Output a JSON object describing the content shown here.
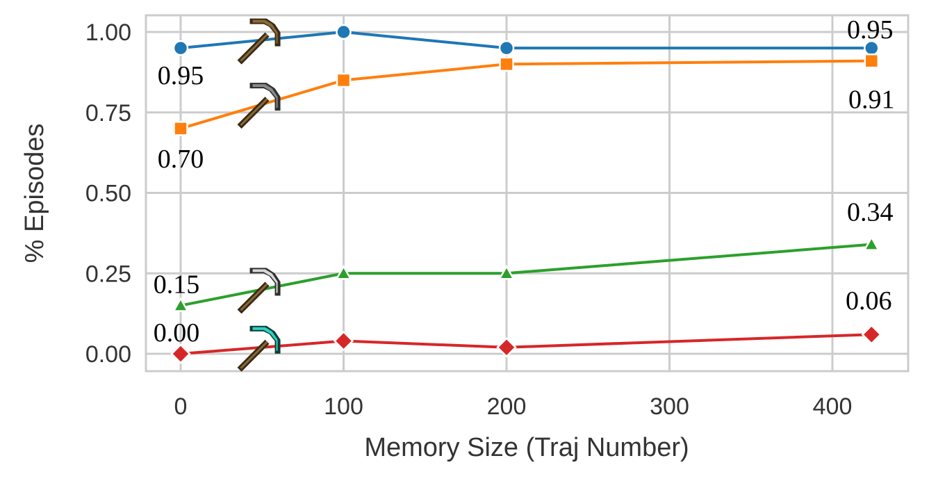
{
  "chart_data": {
    "type": "line",
    "title": "",
    "xlabel": "Memory Size (Traj Number)",
    "ylabel": "% Episodes",
    "xlim": [
      -20,
      445
    ],
    "ylim": [
      -0.05,
      1.05
    ],
    "xticks": [
      0,
      100,
      200,
      300,
      400
    ],
    "xtick_labels": [
      "0",
      "100",
      "200",
      "300",
      "400"
    ],
    "yticks": [
      0,
      0.25,
      0.5,
      0.75,
      1.0
    ],
    "ytick_labels": [
      "0.00",
      "0.25",
      "0.50",
      "0.75",
      "1.00"
    ],
    "grid": true,
    "legend": false,
    "series": [
      {
        "key": "wooden-pickaxe",
        "icon": "wooden-pickaxe-icon",
        "color": "#1f77b4",
        "marker": "circle",
        "x": [
          0,
          100,
          200,
          424
        ],
        "y": [
          0.95,
          1.0,
          0.95,
          0.95
        ]
      },
      {
        "key": "stone-pickaxe",
        "icon": "stone-pickaxe-icon",
        "color": "#ff7f0e",
        "marker": "square",
        "x": [
          0,
          100,
          200,
          424
        ],
        "y": [
          0.7,
          0.85,
          0.9,
          0.91
        ]
      },
      {
        "key": "iron-pickaxe",
        "icon": "iron-pickaxe-icon",
        "color": "#2ca02c",
        "marker": "triangle",
        "x": [
          0,
          100,
          200,
          424
        ],
        "y": [
          0.15,
          0.25,
          0.25,
          0.34
        ]
      },
      {
        "key": "diamond-pickaxe",
        "icon": "diamond-pickaxe-icon",
        "color": "#d62728",
        "marker": "diamond",
        "x": [
          0,
          100,
          200,
          424
        ],
        "y": [
          0.0,
          0.04,
          0.02,
          0.06
        ]
      }
    ],
    "annotations": [
      {
        "text": "0.95",
        "series": "wooden-pickaxe",
        "point": "first"
      },
      {
        "text": "0.95",
        "series": "wooden-pickaxe",
        "point": "last"
      },
      {
        "text": "0.70",
        "series": "stone-pickaxe",
        "point": "first"
      },
      {
        "text": "0.91",
        "series": "stone-pickaxe",
        "point": "last"
      },
      {
        "text": "0.15",
        "series": "iron-pickaxe",
        "point": "first"
      },
      {
        "text": "0.34",
        "series": "iron-pickaxe",
        "point": "last"
      },
      {
        "text": "0.00",
        "series": "diamond-pickaxe",
        "point": "first"
      },
      {
        "text": "0.06",
        "series": "diamond-pickaxe",
        "point": "last"
      }
    ]
  }
}
